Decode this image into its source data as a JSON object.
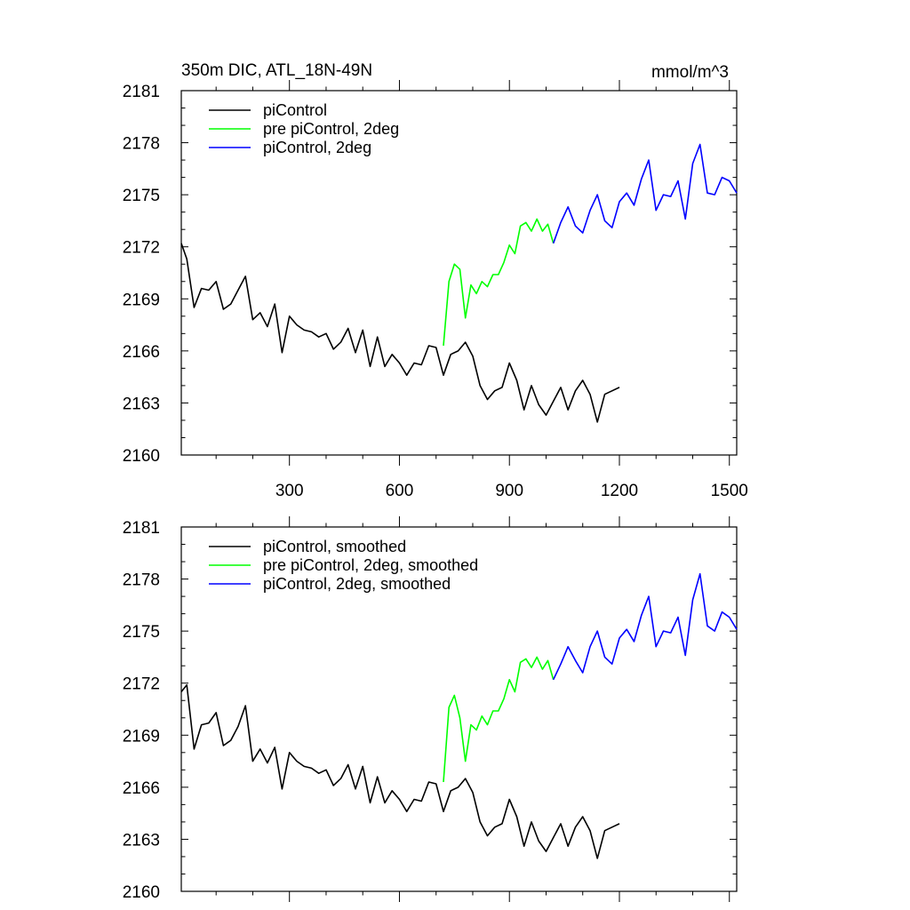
{
  "chart_data": [
    {
      "type": "line",
      "title": "350m DIC, ATL_18N-49N",
      "units": "mmol/m^3",
      "xlim": [
        5,
        1520
      ],
      "ylim": [
        2160,
        2181
      ],
      "xticks": [
        300,
        600,
        900,
        1200,
        1500
      ],
      "yticks": [
        2160,
        2163,
        2166,
        2169,
        2172,
        2175,
        2178,
        2181
      ],
      "show_x_tick_labels": true,
      "legend_position": "top-left",
      "series": [
        {
          "name": "piControl",
          "color": "#000000",
          "x": [
            5,
            20,
            40,
            60,
            80,
            100,
            120,
            140,
            160,
            180,
            200,
            220,
            240,
            260,
            280,
            300,
            320,
            340,
            360,
            380,
            400,
            420,
            440,
            460,
            480,
            500,
            520,
            540,
            560,
            580,
            600,
            620,
            640,
            660,
            680,
            700,
            720,
            740,
            760,
            780,
            800,
            820,
            840,
            860,
            880,
            900,
            920,
            940,
            960,
            980,
            1000,
            1020,
            1040,
            1060,
            1080,
            1100,
            1120,
            1140,
            1160,
            1180,
            1200
          ],
          "values": [
            2172.2,
            2171.3,
            2168.5,
            2169.6,
            2169.5,
            2170.0,
            2168.4,
            2168.7,
            2169.5,
            2170.3,
            2167.8,
            2168.2,
            2167.4,
            2168.7,
            2165.9,
            2168.0,
            2167.5,
            2167.2,
            2167.1,
            2166.8,
            2167.0,
            2166.1,
            2166.5,
            2167.3,
            2165.9,
            2167.2,
            2165.1,
            2166.8,
            2165.1,
            2165.8,
            2165.3,
            2164.6,
            2165.3,
            2165.2,
            2166.3,
            2166.2,
            2164.6,
            2165.8,
            2166.0,
            2166.5,
            2165.7,
            2164.0,
            2163.2,
            2163.7,
            2163.9,
            2165.3,
            2164.3,
            2162.6,
            2164.0,
            2162.9,
            2162.3,
            2163.1,
            2163.9,
            2162.6,
            2163.7,
            2164.3,
            2163.5,
            2161.9,
            2163.5,
            2163.7,
            2163.9
          ]
        },
        {
          "name": "pre piControl, 2deg",
          "color": "#00ff00",
          "x": [
            720,
            735,
            750,
            765,
            780,
            795,
            810,
            825,
            840,
            855,
            870,
            885,
            900,
            915,
            930,
            945,
            960,
            975,
            990,
            1005,
            1020
          ],
          "values": [
            2166.3,
            2170.0,
            2171.0,
            2170.7,
            2167.9,
            2169.8,
            2169.3,
            2170.0,
            2169.7,
            2170.4,
            2170.4,
            2171.1,
            2172.1,
            2171.6,
            2173.2,
            2173.4,
            2172.9,
            2173.6,
            2172.9,
            2173.3,
            2172.2
          ]
        },
        {
          "name": "piControl, 2deg",
          "color": "#0000ff",
          "x": [
            1020,
            1040,
            1060,
            1080,
            1100,
            1120,
            1140,
            1160,
            1180,
            1200,
            1220,
            1240,
            1260,
            1280,
            1300,
            1320,
            1340,
            1360,
            1380,
            1400,
            1420,
            1440,
            1460,
            1480,
            1500,
            1520
          ],
          "values": [
            2172.2,
            2173.4,
            2174.3,
            2173.2,
            2172.8,
            2174.1,
            2175.0,
            2173.5,
            2173.1,
            2174.6,
            2175.1,
            2174.4,
            2175.9,
            2177.0,
            2174.1,
            2175.0,
            2174.9,
            2175.8,
            2173.6,
            2176.8,
            2177.9,
            2175.1,
            2175.0,
            2176.0,
            2175.8,
            2175.1
          ]
        }
      ]
    },
    {
      "type": "line",
      "title": "",
      "units": "",
      "xlim": [
        5,
        1520
      ],
      "ylim": [
        2160,
        2181
      ],
      "xticks": [
        300,
        600,
        900,
        1200,
        1500
      ],
      "yticks": [
        2160,
        2163,
        2166,
        2169,
        2172,
        2175,
        2178,
        2181
      ],
      "show_x_tick_labels": false,
      "legend_position": "top-left",
      "series": [
        {
          "name": "piControl, smoothed",
          "color": "#000000",
          "x": [
            5,
            20,
            40,
            60,
            80,
            100,
            120,
            140,
            160,
            180,
            200,
            220,
            240,
            260,
            280,
            300,
            320,
            340,
            360,
            380,
            400,
            420,
            440,
            460,
            480,
            500,
            520,
            540,
            560,
            580,
            600,
            620,
            640,
            660,
            680,
            700,
            720,
            740,
            760,
            780,
            800,
            820,
            840,
            860,
            880,
            900,
            920,
            940,
            960,
            980,
            1000,
            1020,
            1040,
            1060,
            1080,
            1100,
            1120,
            1140,
            1160,
            1180,
            1200
          ],
          "values": [
            2171.5,
            2171.9,
            2168.2,
            2169.6,
            2169.7,
            2170.3,
            2168.4,
            2168.7,
            2169.5,
            2170.7,
            2167.5,
            2168.2,
            2167.4,
            2168.3,
            2165.9,
            2168.0,
            2167.5,
            2167.2,
            2167.1,
            2166.8,
            2167.0,
            2166.1,
            2166.5,
            2167.3,
            2165.9,
            2167.2,
            2165.1,
            2166.6,
            2165.1,
            2165.8,
            2165.3,
            2164.6,
            2165.3,
            2165.2,
            2166.3,
            2166.2,
            2164.6,
            2165.8,
            2166.0,
            2166.5,
            2165.7,
            2164.0,
            2163.2,
            2163.7,
            2163.9,
            2165.3,
            2164.3,
            2162.6,
            2164.0,
            2162.9,
            2162.3,
            2163.1,
            2163.9,
            2162.6,
            2163.7,
            2164.3,
            2163.5,
            2161.9,
            2163.5,
            2163.7,
            2163.9
          ]
        },
        {
          "name": "pre piControl, 2deg, smoothed",
          "color": "#00ff00",
          "x": [
            720,
            735,
            750,
            765,
            780,
            795,
            810,
            825,
            840,
            855,
            870,
            885,
            900,
            915,
            930,
            945,
            960,
            975,
            990,
            1005,
            1020
          ],
          "values": [
            2166.3,
            2170.6,
            2171.3,
            2170.0,
            2167.5,
            2169.6,
            2169.3,
            2170.1,
            2169.6,
            2170.4,
            2170.4,
            2171.1,
            2172.2,
            2171.5,
            2173.2,
            2173.4,
            2172.9,
            2173.5,
            2172.8,
            2173.3,
            2172.2
          ]
        },
        {
          "name": "piControl, 2deg, smoothed",
          "color": "#0000ff",
          "x": [
            1020,
            1040,
            1060,
            1080,
            1100,
            1120,
            1140,
            1160,
            1180,
            1200,
            1220,
            1240,
            1260,
            1280,
            1300,
            1320,
            1340,
            1360,
            1380,
            1400,
            1420,
            1440,
            1460,
            1480,
            1500,
            1520
          ],
          "values": [
            2172.2,
            2173.1,
            2174.1,
            2173.3,
            2172.6,
            2174.1,
            2175.0,
            2173.5,
            2173.1,
            2174.6,
            2175.1,
            2174.4,
            2175.9,
            2177.0,
            2174.1,
            2175.0,
            2174.9,
            2175.8,
            2173.6,
            2176.8,
            2178.3,
            2175.3,
            2175.0,
            2176.1,
            2175.8,
            2175.1
          ]
        }
      ]
    }
  ]
}
